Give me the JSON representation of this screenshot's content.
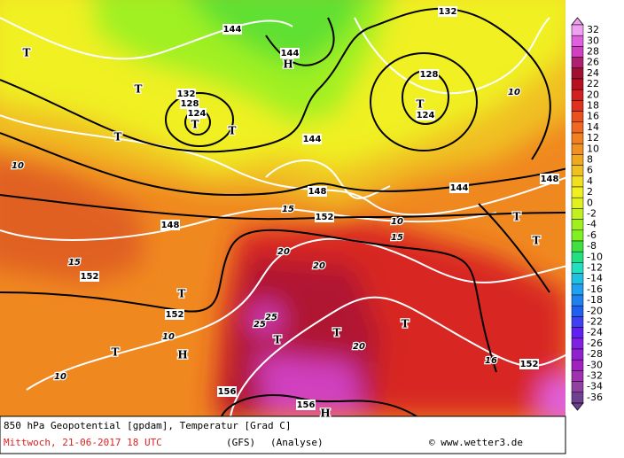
{
  "header": {
    "product": "850 hPa Geopotential [gpdam], Temperatur [Grad C]",
    "date": "Mittwoch, 21-06-2017  18 UTC",
    "model": "(GFS)",
    "run": "(Analyse)",
    "copyright": "© www.wetter3.de"
  },
  "color_scale": {
    "values": [
      32,
      30,
      28,
      26,
      24,
      22,
      20,
      18,
      16,
      14,
      12,
      10,
      8,
      6,
      4,
      2,
      0,
      -2,
      -4,
      -6,
      -8,
      -10,
      -12,
      -14,
      -16,
      -18,
      -20,
      -22,
      -24,
      -26,
      -28,
      -30,
      -32,
      -34,
      -36
    ],
    "colors": [
      "#f0a0f0",
      "#e060e0",
      "#d040c0",
      "#b02070",
      "#a01030",
      "#b81020",
      "#d02020",
      "#e03020",
      "#e85020",
      "#f06820",
      "#f08020",
      "#f09020",
      "#f0a820",
      "#f0c020",
      "#f0e020",
      "#f0f020",
      "#e0f020",
      "#c0f020",
      "#a0f020",
      "#80f020",
      "#40e040",
      "#20e080",
      "#20e0c0",
      "#20c0e0",
      "#20a0f0",
      "#2080f0",
      "#2060f0",
      "#4040f0",
      "#6020f0",
      "#8020e0",
      "#9020d0",
      "#a020c0",
      "#a030b0",
      "#9040a0",
      "#704090"
    ]
  },
  "map_labels": {
    "geopotential": [
      "144",
      "144",
      "132",
      "128",
      "124",
      "124",
      "128",
      "132",
      "144",
      "144",
      "148",
      "152",
      "148",
      "152",
      "152",
      "156",
      "156",
      "152",
      "148"
    ],
    "pressure_centers": [
      "H",
      "T",
      "T",
      "T",
      "T",
      "T",
      "T",
      "T",
      "T",
      "H",
      "T",
      "T",
      "T",
      "T",
      "H",
      "T"
    ],
    "temperature": [
      "25",
      "25",
      "20",
      "20",
      "20",
      "15",
      "15",
      "15",
      "10",
      "10",
      "10",
      "10",
      "10",
      "16"
    ]
  }
}
